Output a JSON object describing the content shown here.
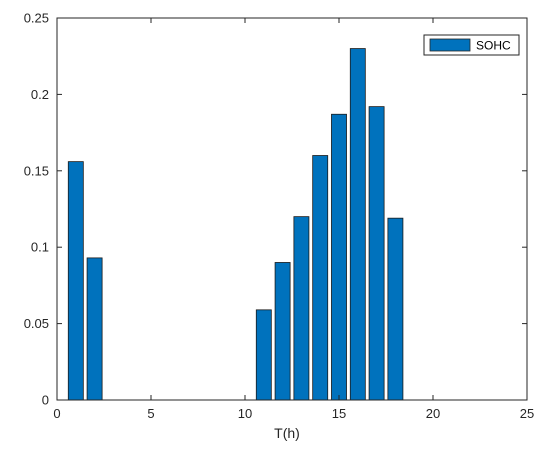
{
  "chart_data": {
    "type": "bar",
    "x": [
      1,
      2,
      11,
      12,
      13,
      14,
      15,
      16,
      17,
      18
    ],
    "series": [
      {
        "name": "SOHC",
        "values": [
          0.156,
          0.093,
          0.059,
          0.09,
          0.12,
          0.16,
          0.187,
          0.23,
          0.192,
          0.119
        ],
        "color": "#0072bd"
      }
    ],
    "xlabel": "T(h)",
    "ylabel": "",
    "title": "",
    "xlim": [
      0,
      25
    ],
    "ylim": [
      0,
      0.25
    ],
    "xticks": [
      0,
      5,
      10,
      15,
      20,
      25
    ],
    "yticks": [
      0,
      0.05,
      0.1,
      0.15,
      0.2,
      0.25
    ],
    "xtick_labels": [
      "0",
      "5",
      "10",
      "15",
      "20",
      "25"
    ],
    "ytick_labels": [
      "0",
      "0.05",
      "0.1",
      "0.15",
      "0.2",
      "0.25"
    ],
    "grid": false,
    "legend_position": "top-right"
  }
}
